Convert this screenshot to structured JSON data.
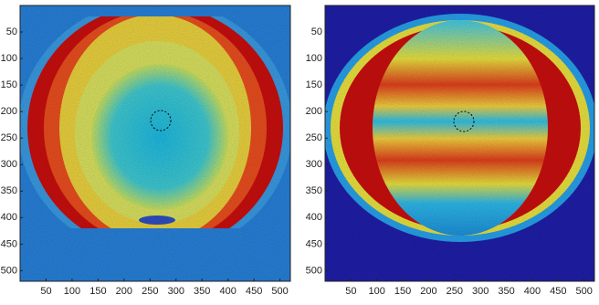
{
  "chart_data": [
    {
      "type": "image",
      "xlim": [
        0,
        520
      ],
      "ylim": [
        0,
        520
      ],
      "y_inverted": true,
      "xticks": [
        50,
        100,
        150,
        200,
        250,
        300,
        350,
        400,
        450,
        500
      ],
      "yticks": [
        50,
        100,
        150,
        200,
        250,
        300,
        350,
        400,
        450,
        500
      ]
    },
    {
      "type": "image",
      "xlim": [
        0,
        520
      ],
      "ylim": [
        0,
        520
      ],
      "y_inverted": true,
      "xticks": [
        50,
        100,
        150,
        200,
        250,
        300,
        350,
        400,
        450,
        500
      ],
      "yticks": [
        50,
        100,
        150,
        200,
        250,
        300,
        350,
        400,
        450,
        500
      ]
    }
  ]
}
